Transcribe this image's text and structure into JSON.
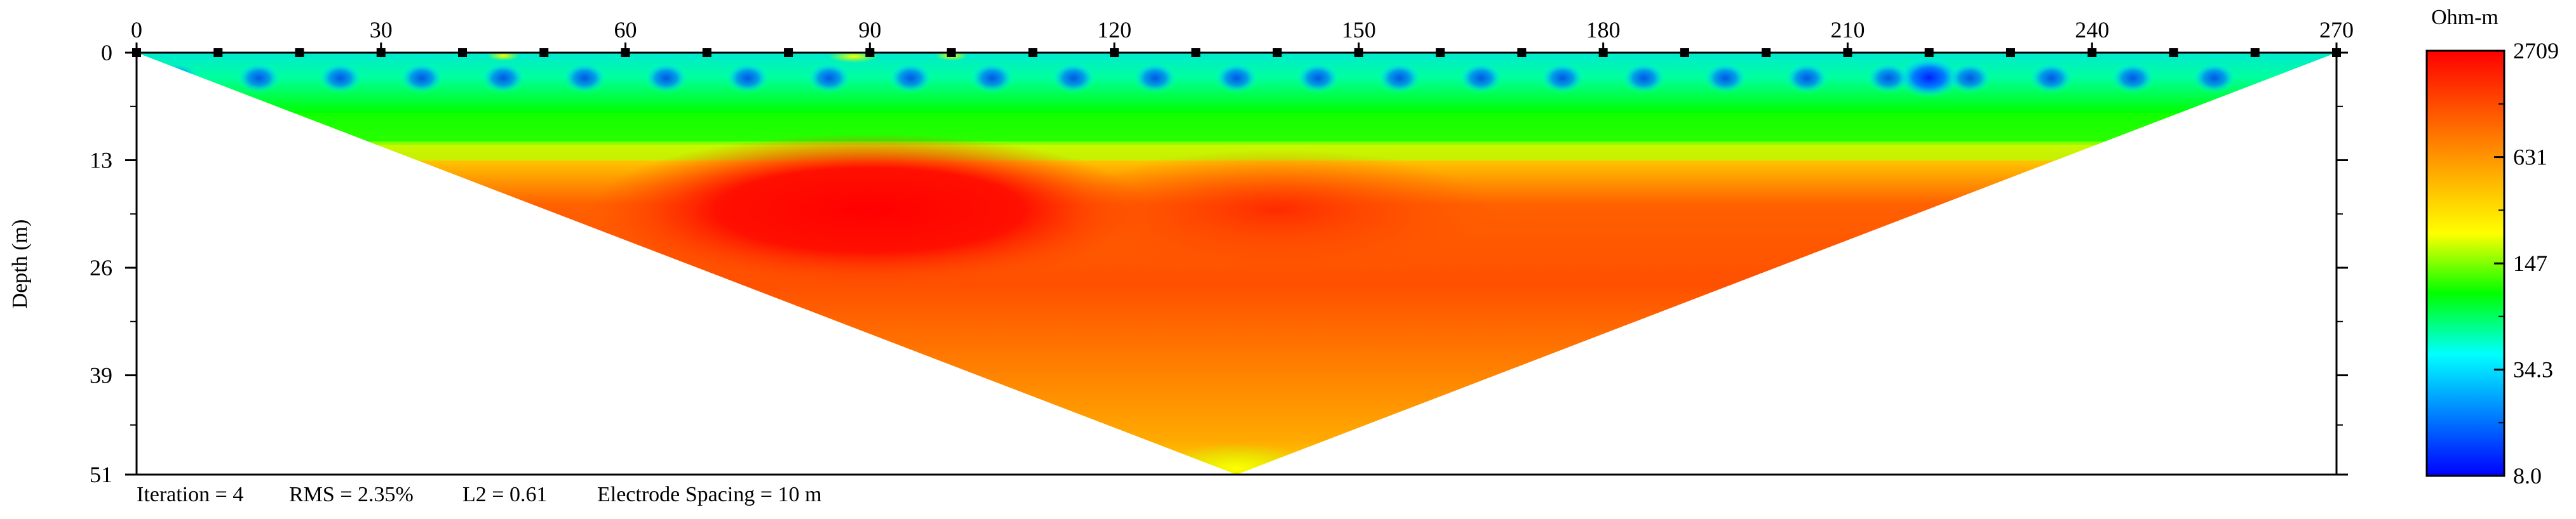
{
  "chart_data": {
    "type": "heatmap",
    "title": "",
    "xlabel": "",
    "ylabel": "Depth (m)",
    "x_ticks": [
      0,
      30,
      60,
      90,
      120,
      150,
      180,
      210,
      240,
      270
    ],
    "y_ticks": [
      0,
      13,
      26,
      39,
      51
    ],
    "xlim": [
      0,
      270
    ],
    "ylim": [
      0,
      51
    ],
    "electrodes": [
      0,
      10,
      20,
      30,
      40,
      50,
      60,
      70,
      80,
      90,
      100,
      110,
      120,
      130,
      140,
      150,
      160,
      170,
      180,
      190,
      200,
      210,
      220,
      230,
      240,
      250,
      260,
      270
    ],
    "colorbar": {
      "unit": "Ohm-m",
      "scale": "log",
      "ticks": [
        "2709",
        "631",
        "147",
        "34.3",
        "8.0"
      ],
      "tick_values": [
        2709,
        631,
        147,
        34.3,
        8.0
      ],
      "colors": [
        "#ff0000",
        "#ff5500",
        "#ffaa00",
        "#ffff00",
        "#00ff00",
        "#00ffff",
        "#0080ff",
        "#0000ff"
      ]
    },
    "section_shape": "inverted-triangle",
    "triangle_apex": {
      "x": 135,
      "depth": 51
    },
    "anomalies": [
      {
        "x": 90,
        "depth": 19,
        "value": 2709
      },
      {
        "x": 140,
        "depth": 19,
        "value": 2300
      },
      {
        "x": 220,
        "depth": 3,
        "value": 8.0
      }
    ],
    "footer": {
      "iteration": "Iteration = 4",
      "rms": "RMS = 2.35%",
      "l2": "L2 = 0.61",
      "spacing": "Electrode Spacing = 10 m"
    }
  }
}
